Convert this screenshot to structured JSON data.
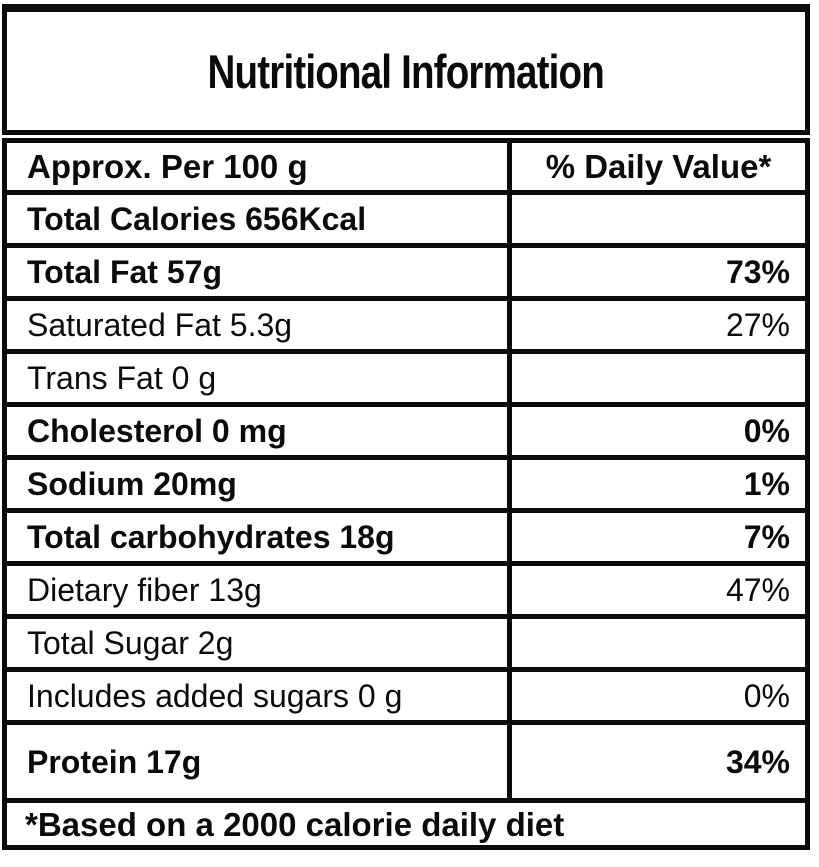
{
  "title": "Nutritional Information",
  "header": {
    "col1": "Approx. Per 100 g",
    "col2": "% Daily Value*"
  },
  "rows": [
    {
      "label": "Total Calories 656Kcal",
      "value": "",
      "bold": true
    },
    {
      "label": "Total Fat 57g",
      "value": "73%",
      "bold": true
    },
    {
      "label": "Saturated Fat 5.3g",
      "value": "27%",
      "bold": false
    },
    {
      "label": "Trans Fat 0 g",
      "value": "",
      "bold": false
    },
    {
      "label": "Cholesterol 0 mg",
      "value": "0%",
      "bold": true
    },
    {
      "label": "Sodium 20mg",
      "value": "1%",
      "bold": true
    },
    {
      "label": "Total carbohydrates 18g",
      "value": "7%",
      "bold": true
    },
    {
      "label": "Dietary fiber 13g",
      "value": "47%",
      "bold": false
    },
    {
      "label": "Total Sugar 2g",
      "value": "",
      "bold": false
    },
    {
      "label": "Includes added sugars 0 g",
      "value": "0%",
      "bold": false
    },
    {
      "label": "Protein 17g",
      "value": "34%",
      "bold": true
    }
  ],
  "footnote": "*Based on a 2000 calorie daily diet",
  "colors": {
    "text": "#0b0b0b",
    "border": "#0b0b0b",
    "background": "#ffffff"
  }
}
